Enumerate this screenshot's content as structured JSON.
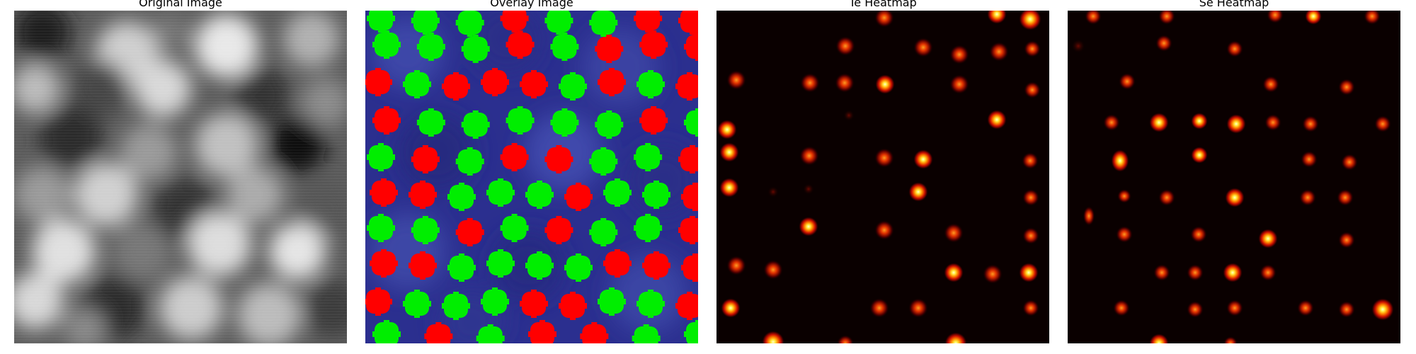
{
  "panels": [
    {
      "id": "original",
      "title": "Original Image"
    },
    {
      "id": "overlay",
      "title": "Overlay Image"
    },
    {
      "id": "te",
      "title": "Te Heatmap"
    },
    {
      "id": "se",
      "title": "Se Heatmap"
    }
  ],
  "colors": {
    "green": "#00ee00",
    "red": "#ff0000",
    "overlay_bg": "#2a2a8c",
    "heatmap_bg": "#0a0000"
  },
  "overlay_sites": [
    [
      "g",
      "g",
      "g",
      "r",
      "g",
      "g",
      "r",
      "r"
    ],
    [
      "g",
      "g",
      "g",
      "r",
      "g",
      "r",
      "r",
      "r"
    ],
    [
      "r",
      "g",
      "r",
      "r",
      "r",
      "g",
      "r",
      "g",
      "r"
    ],
    [
      "r",
      "g",
      "g",
      "g",
      "g",
      "g",
      "r",
      "g"
    ],
    [
      "g",
      "r",
      "g",
      "r",
      "r",
      "g",
      "g",
      "r"
    ],
    [
      "r",
      "r",
      "g",
      "g",
      "g",
      "r",
      "g",
      "g",
      "r"
    ],
    [
      "g",
      "g",
      "r",
      "g",
      "r",
      "g",
      "g",
      "r"
    ],
    [
      "r",
      "r",
      "g",
      "g",
      "g",
      "g",
      "r",
      "r",
      "r"
    ],
    [
      "r",
      "g",
      "g",
      "g",
      "r",
      "r",
      "g",
      "g",
      "r"
    ],
    [
      "g",
      "r",
      "g",
      "r",
      "r",
      "g",
      "g"
    ]
  ]
}
